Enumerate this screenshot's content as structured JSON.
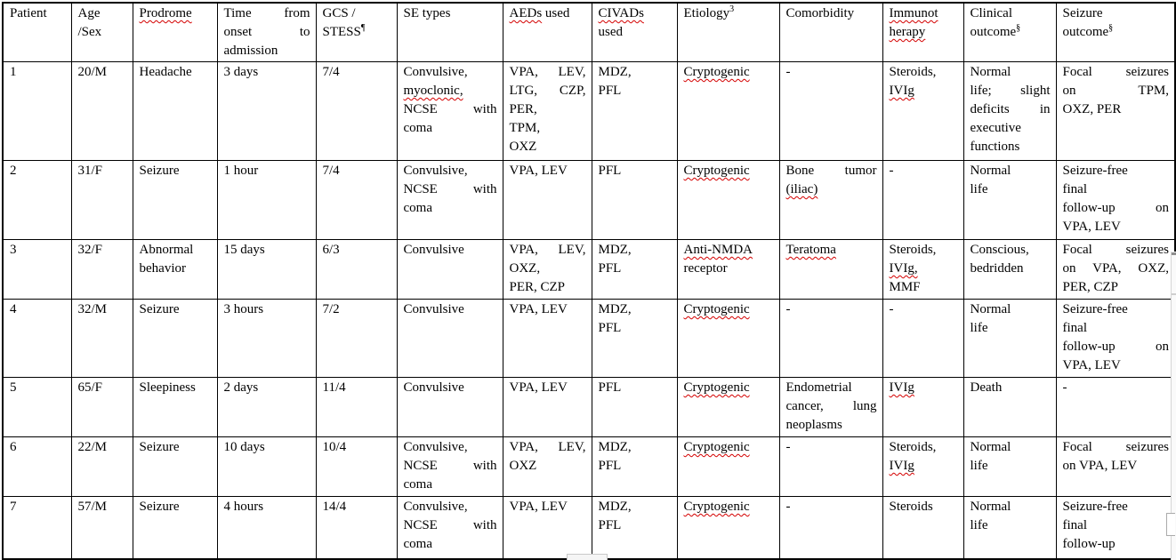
{
  "colors": {
    "background": "#ffffff",
    "text": "#000000",
    "table_border": "#000000",
    "spellcheck_squiggle": "#d40000"
  },
  "table": {
    "headers": [
      {
        "key": "patient",
        "lines": [
          "Patient"
        ]
      },
      {
        "key": "age-sex",
        "lines": [
          "Age",
          "/Sex"
        ]
      },
      {
        "key": "prodrome",
        "lines": [
          {
            "segs": [
              {
                "t": "Prodrome",
                "sq": true
              }
            ]
          }
        ]
      },
      {
        "key": "time-from-onset",
        "lines": [
          {
            "segs": [
              {
                "t": "Time from"
              }
            ],
            "j": true
          },
          {
            "segs": [
              {
                "t": "onset to"
              }
            ],
            "j": true
          },
          "admission"
        ]
      },
      {
        "key": "gcs-stess",
        "lines": [
          "GCS /",
          {
            "segs": [
              {
                "t": "STESS"
              }
            ],
            "sup": "¶"
          }
        ]
      },
      {
        "key": "se-types",
        "lines": [
          "SE types"
        ]
      },
      {
        "key": "aeds-used",
        "lines": [
          {
            "segs": [
              {
                "t": "AEDs",
                "sq": true
              },
              {
                "t": " used"
              }
            ]
          }
        ]
      },
      {
        "key": "civads-used",
        "lines": [
          {
            "segs": [
              {
                "t": "CIVADs",
                "sq": true
              }
            ]
          },
          "used"
        ]
      },
      {
        "key": "etiology",
        "lines": [
          {
            "segs": [
              {
                "t": "Etiology"
              }
            ],
            "sup": "3"
          }
        ]
      },
      {
        "key": "comorbidity",
        "lines": [
          "Comorbidity"
        ]
      },
      {
        "key": "immunotherapy",
        "lines": [
          {
            "segs": [
              {
                "t": "Immunot",
                "sq": true
              }
            ]
          },
          {
            "segs": [
              {
                "t": "herapy",
                "sq": true
              }
            ]
          }
        ]
      },
      {
        "key": "clinical-outcome",
        "lines": [
          "Clinical",
          {
            "segs": [
              {
                "t": "outcome"
              }
            ],
            "sup": "§"
          }
        ]
      },
      {
        "key": "seizure-outcome",
        "lines": [
          "Seizure",
          {
            "segs": [
              {
                "t": "outcome"
              }
            ],
            "sup": "§"
          }
        ]
      }
    ],
    "rows": [
      [
        "1",
        "20/M",
        "Headache",
        "3 days",
        "7/4",
        [
          "Convulsive,",
          {
            "segs": [
              {
                "t": "myoclonic,",
                "sq": true
              }
            ]
          },
          {
            "segs": [
              {
                "t": "NCSE with"
              }
            ],
            "j": true
          },
          "coma"
        ],
        [
          {
            "segs": [
              {
                "t": "VPA, LEV,"
              }
            ],
            "j": true
          },
          {
            "segs": [
              {
                "t": "LTG, CZP,"
              }
            ],
            "j": true
          },
          "PER,",
          "TPM,",
          "OXZ"
        ],
        [
          "MDZ,",
          "PFL"
        ],
        [
          {
            "segs": [
              {
                "t": "Cryptogenic",
                "sq": true
              }
            ]
          }
        ],
        "-",
        [
          "Steroids,",
          {
            "segs": [
              {
                "t": "IVIg",
                "sq": true
              }
            ]
          }
        ],
        [
          "Normal",
          {
            "segs": [
              {
                "t": "life; slight"
              }
            ],
            "j": true
          },
          {
            "segs": [
              {
                "t": "deficits in"
              }
            ],
            "j": true
          },
          "executive",
          "functions"
        ],
        [
          {
            "segs": [
              {
                "t": "Focal seizures"
              }
            ],
            "j": true
          },
          {
            "segs": [
              {
                "t": "on TPM,"
              }
            ],
            "j": true
          },
          "OXZ, PER"
        ]
      ],
      [
        "2",
        "31/F",
        "Seizure",
        "1 hour",
        "7/4",
        [
          "Convulsive,",
          {
            "segs": [
              {
                "t": "NCSE with"
              }
            ],
            "j": true
          },
          "coma"
        ],
        "VPA, LEV",
        "PFL",
        [
          {
            "segs": [
              {
                "t": "Cryptogenic",
                "sq": true
              }
            ]
          }
        ],
        [
          {
            "segs": [
              {
                "t": "Bone tumor"
              }
            ],
            "j": true
          },
          {
            "segs": [
              {
                "t": "(iliac)",
                "sq": true
              }
            ]
          }
        ],
        "-",
        [
          "Normal",
          "life"
        ],
        [
          "Seizure-free",
          "final",
          {
            "segs": [
              {
                "t": "follow-up on"
              }
            ],
            "j": true
          },
          "VPA, LEV"
        ]
      ],
      [
        "3",
        "32/F",
        [
          "Abnormal",
          "behavior"
        ],
        "15 days",
        "6/3",
        "Convulsive",
        [
          {
            "segs": [
              {
                "t": "VPA, LEV,"
              }
            ],
            "j": true
          },
          "OXZ,",
          "PER, CZP"
        ],
        [
          "MDZ,",
          "PFL"
        ],
        [
          {
            "segs": [
              {
                "t": "Anti-NMDA",
                "sq": true
              }
            ]
          },
          "receptor"
        ],
        [
          {
            "segs": [
              {
                "t": "Teratoma",
                "sq": true
              }
            ]
          }
        ],
        [
          "Steroids,",
          {
            "segs": [
              {
                "t": "IVIg,",
                "sq": true
              }
            ]
          },
          "MMF"
        ],
        [
          "Conscious,",
          "bedridden"
        ],
        [
          {
            "segs": [
              {
                "t": "Focal seizures"
              }
            ],
            "j": true
          },
          {
            "segs": [
              {
                "t": "on VPA, OXZ,"
              }
            ],
            "j": true
          },
          "PER, CZP"
        ]
      ],
      [
        "4",
        "32/M",
        "Seizure",
        "3 hours",
        "7/2",
        "Convulsive",
        "VPA, LEV",
        [
          "MDZ,",
          "PFL"
        ],
        [
          {
            "segs": [
              {
                "t": "Cryptogenic",
                "sq": true
              }
            ]
          }
        ],
        "-",
        "-",
        [
          "Normal",
          "life"
        ],
        [
          "Seizure-free",
          "final",
          {
            "segs": [
              {
                "t": "follow-up on"
              }
            ],
            "j": true
          },
          "VPA, LEV"
        ]
      ],
      [
        "5",
        "65/F",
        "Sleepiness",
        "2 days",
        "11/4",
        "Convulsive",
        "VPA, LEV",
        "PFL",
        [
          {
            "segs": [
              {
                "t": "Cryptogenic",
                "sq": true
              }
            ]
          }
        ],
        [
          "Endometrial",
          {
            "segs": [
              {
                "t": "cancer, lung"
              }
            ],
            "j": true
          },
          "neoplasms"
        ],
        [
          {
            "segs": [
              {
                "t": "IVIg",
                "sq": true
              }
            ]
          }
        ],
        "Death",
        "-"
      ],
      [
        "6",
        "22/M",
        "Seizure",
        "10 days",
        "10/4",
        [
          "Convulsive,",
          {
            "segs": [
              {
                "t": "NCSE with"
              }
            ],
            "j": true
          },
          "coma"
        ],
        [
          {
            "segs": [
              {
                "t": "VPA, LEV,"
              }
            ],
            "j": true
          },
          "OXZ"
        ],
        [
          "MDZ,",
          "PFL"
        ],
        [
          {
            "segs": [
              {
                "t": "Cryptogenic",
                "sq": true
              }
            ]
          }
        ],
        "-",
        [
          "Steroids,",
          {
            "segs": [
              {
                "t": "IVIg",
                "sq": true
              }
            ]
          }
        ],
        [
          "Normal",
          "life"
        ],
        [
          {
            "segs": [
              {
                "t": "Focal seizures"
              }
            ],
            "j": true
          },
          "on VPA, LEV"
        ]
      ],
      [
        "7",
        "57/M",
        "Seizure",
        "4 hours",
        "14/4",
        [
          "Convulsive,",
          {
            "segs": [
              {
                "t": "NCSE with"
              }
            ],
            "j": true
          },
          "coma"
        ],
        "VPA, LEV",
        [
          "MDZ,",
          "PFL"
        ],
        [
          {
            "segs": [
              {
                "t": "Cryptogenic",
                "sq": true
              }
            ]
          }
        ],
        "-",
        "Steroids",
        [
          "Normal",
          "life"
        ],
        [
          "Seizure-free",
          "final",
          "follow-up"
        ]
      ]
    ]
  }
}
